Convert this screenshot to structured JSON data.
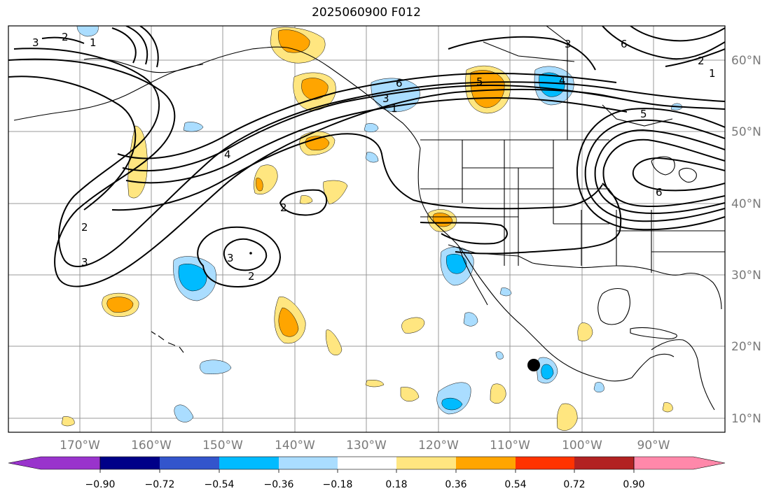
{
  "title": "2025060900 F012",
  "map": {
    "lon_labels": [
      "170°W",
      "160°W",
      "150°W",
      "140°W",
      "130°W",
      "120°W",
      "110°W",
      "100°W",
      "90°W"
    ],
    "lat_labels": [
      "60°N",
      "50°N",
      "40°N",
      "30°N",
      "20°N",
      "10°N"
    ],
    "contour_labels": [
      "3",
      "2",
      "1",
      "4",
      "6",
      "3",
      "1",
      "5",
      "4",
      "3",
      "6",
      "5",
      "2",
      "1",
      "6",
      "2",
      "2",
      "3",
      "3",
      "2"
    ],
    "marker": "filled-black-circle"
  },
  "colorbar": {
    "tick_labels": [
      "−0.90",
      "−0.72",
      "−0.54",
      "−0.36",
      "−0.18",
      "0.18",
      "0.36",
      "0.54",
      "0.72",
      "0.90"
    ],
    "colors": [
      "#9933cc",
      "#000088",
      "#3355cc",
      "#00bbff",
      "#aaddff",
      "#ffffff",
      "#ffe680",
      "#ffa500",
      "#ff3300",
      "#b22222",
      "#ff88aa"
    ]
  }
}
